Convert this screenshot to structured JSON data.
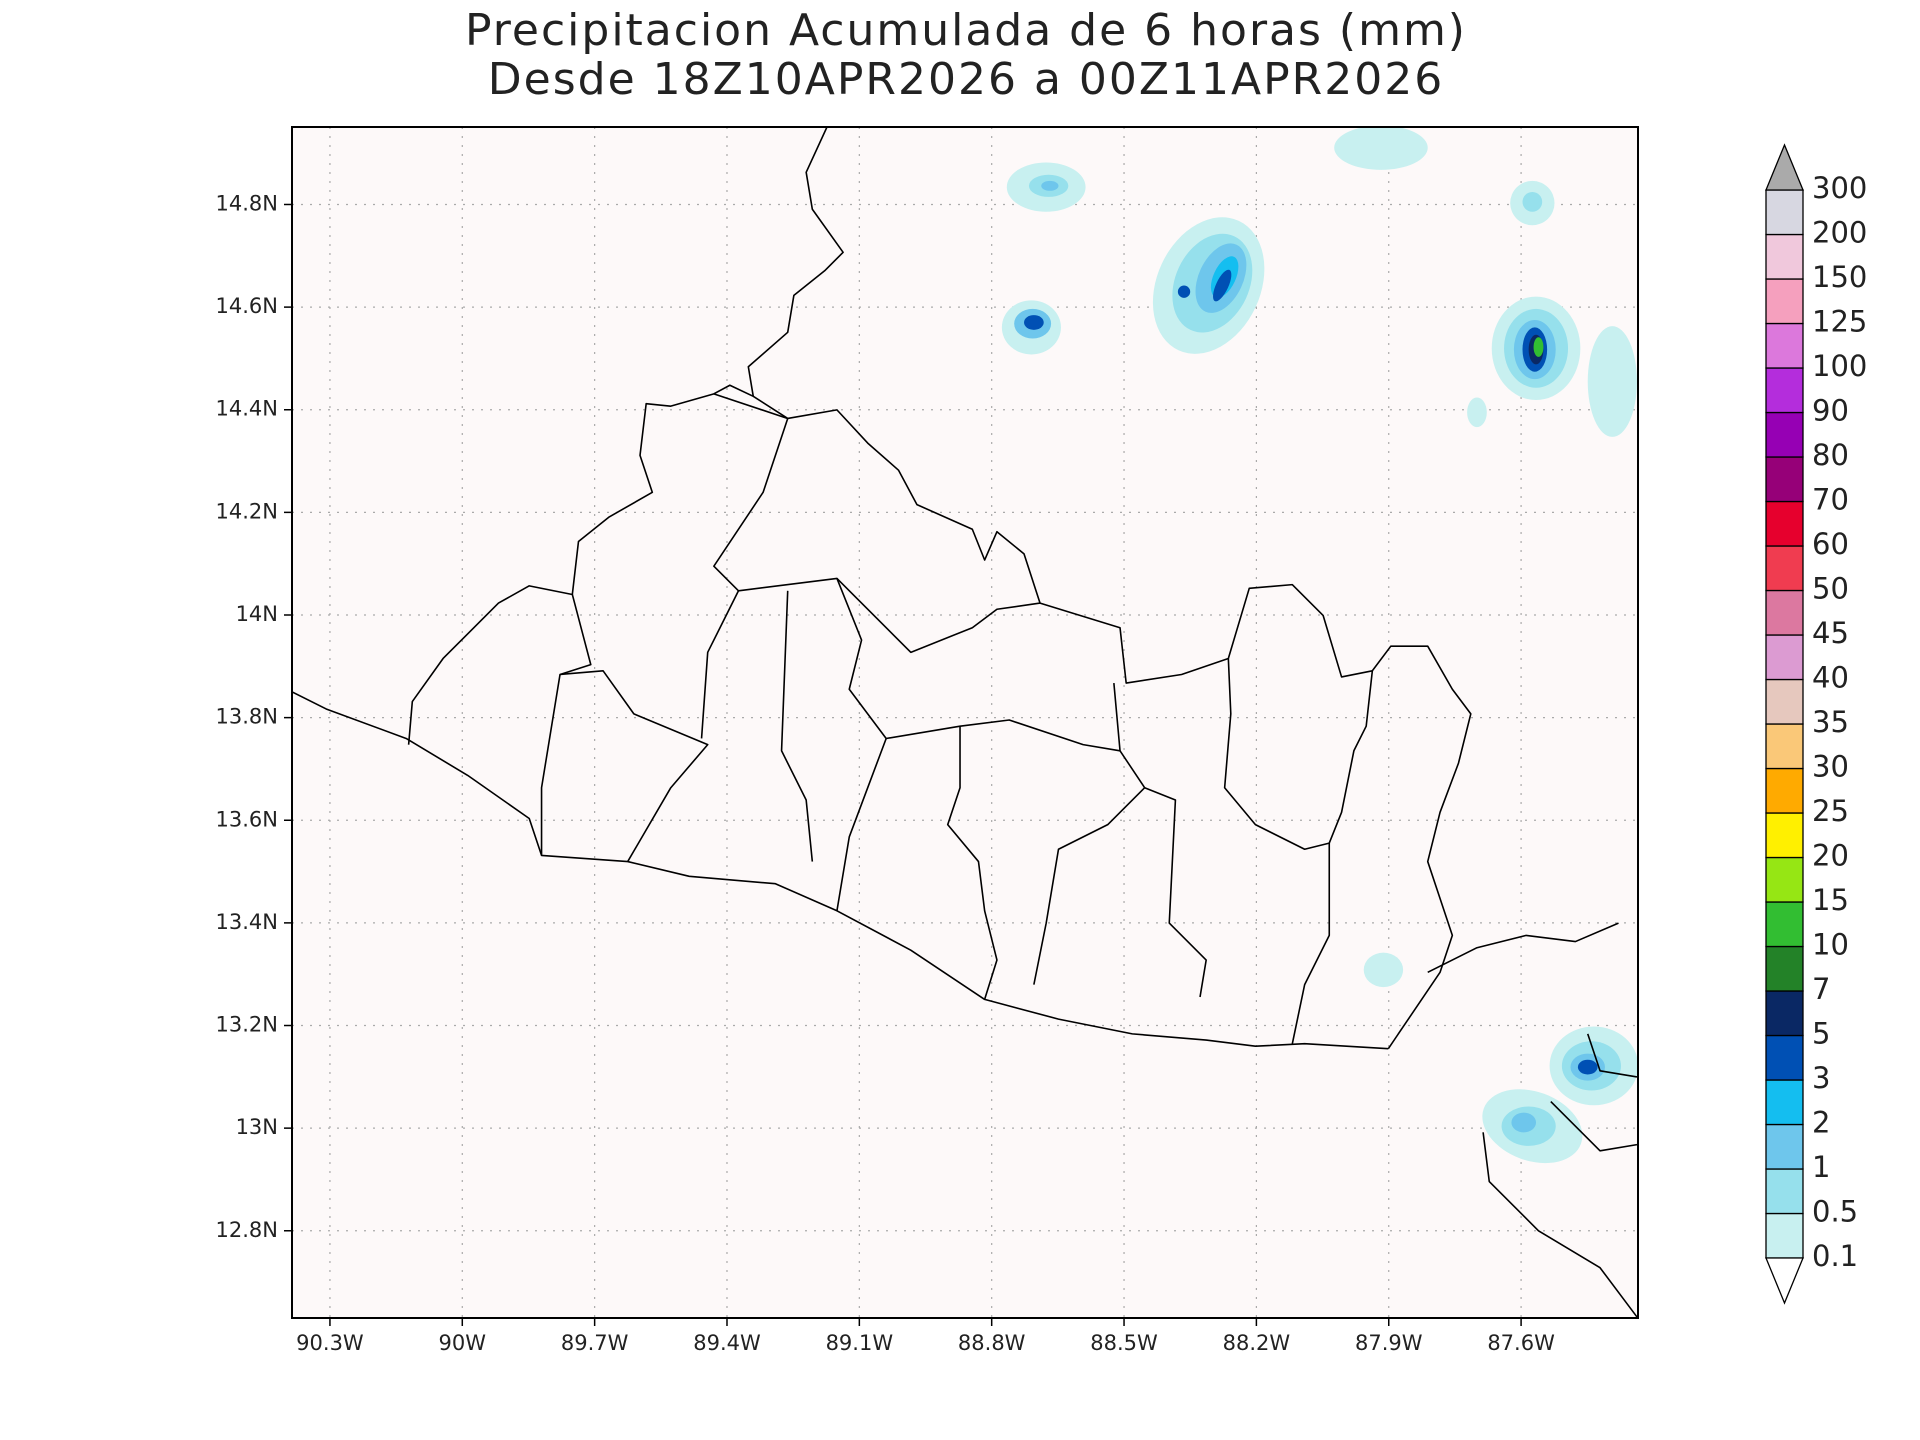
{
  "title": "Precipitacion Acumulada de 6 horas (mm)",
  "subtitle": "Desde 18Z10APR2026 a 00Z11APR2026",
  "lon_range": [
    -90.386,
    -87.335
  ],
  "lat_range": [
    12.63,
    14.951
  ],
  "x_ticks": [
    {
      "value": -90.3,
      "label": "90.3W"
    },
    {
      "value": -90.0,
      "label": "90W"
    },
    {
      "value": -89.7,
      "label": "89.7W"
    },
    {
      "value": -89.4,
      "label": "89.4W"
    },
    {
      "value": -89.1,
      "label": "89.1W"
    },
    {
      "value": -88.8,
      "label": "88.8W"
    },
    {
      "value": -88.5,
      "label": "88.5W"
    },
    {
      "value": -88.2,
      "label": "88.2W"
    },
    {
      "value": -87.9,
      "label": "87.9W"
    },
    {
      "value": -87.6,
      "label": "87.6W"
    }
  ],
  "y_ticks": [
    {
      "value": 14.8,
      "label": "14.8N"
    },
    {
      "value": 14.6,
      "label": "14.6N"
    },
    {
      "value": 14.4,
      "label": "14.4N"
    },
    {
      "value": 14.2,
      "label": "14.2N"
    },
    {
      "value": 14.0,
      "label": "14N"
    },
    {
      "value": 13.8,
      "label": "13.8N"
    },
    {
      "value": 13.6,
      "label": "13.6N"
    },
    {
      "value": 13.4,
      "label": "13.4N"
    },
    {
      "value": 13.2,
      "label": "13.2N"
    },
    {
      "value": 13.0,
      "label": "13N"
    },
    {
      "value": 12.8,
      "label": "12.8N"
    }
  ],
  "colorbar": {
    "levels": [
      0.1,
      0.5,
      1,
      2,
      3,
      5,
      7,
      10,
      15,
      20,
      25,
      30,
      35,
      40,
      45,
      50,
      60,
      70,
      80,
      90,
      100,
      125,
      150,
      200,
      300
    ],
    "colors": [
      "#c8f0f0",
      "#96e0ec",
      "#6ec6ec",
      "#14bef0",
      "#0050b4",
      "#0a2864",
      "#238228",
      "#32be32",
      "#96e614",
      "#fff000",
      "#ffaa00",
      "#fac878",
      "#e6c8be",
      "#dc9bd2",
      "#dc78a0",
      "#f03c50",
      "#e6002d",
      "#960078",
      "#9600b4",
      "#b42ddc",
      "#dc78dc",
      "#f5a0be",
      "#f0c8dc",
      "#d7d7e1"
    ],
    "over_color": "#aaaaaa",
    "under_color": "#ffffff"
  }
}
